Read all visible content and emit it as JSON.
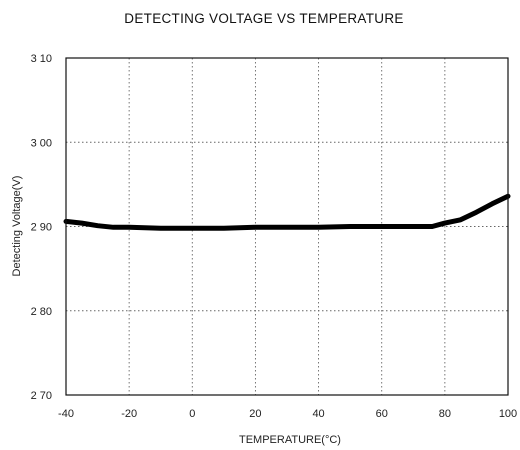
{
  "chart_data": {
    "type": "line",
    "title": "DETECTING VOLTAGE VS TEMPERATURE",
    "xlabel": "TEMPERATURE(°C)",
    "ylabel": "Detecting Voltage(V)",
    "xlim": [
      -40,
      100
    ],
    "ylim": [
      2.7,
      3.1
    ],
    "x_ticks": [
      -40,
      -20,
      0,
      20,
      40,
      60,
      80,
      100
    ],
    "x_tick_labels": [
      "-40",
      "-20",
      "0",
      "20",
      "40",
      "60",
      "80",
      "100"
    ],
    "y_ticks": [
      2.7,
      2.8,
      2.9,
      3.0,
      3.1
    ],
    "y_tick_labels": [
      "2 70",
      "2 80",
      "2 90",
      "3 00",
      "3 10"
    ],
    "grid": true,
    "series": [
      {
        "x": [
          -40,
          -35,
          -30,
          -25,
          -20,
          -10,
          0,
          10,
          20,
          30,
          40,
          50,
          60,
          70,
          76,
          80,
          85,
          90,
          95,
          100
        ],
        "y": [
          2.906,
          2.904,
          2.901,
          2.899,
          2.899,
          2.898,
          2.898,
          2.898,
          2.899,
          2.899,
          2.899,
          2.9,
          2.9,
          2.9,
          2.9,
          2.904,
          2.908,
          2.917,
          2.927,
          2.936
        ]
      }
    ]
  }
}
